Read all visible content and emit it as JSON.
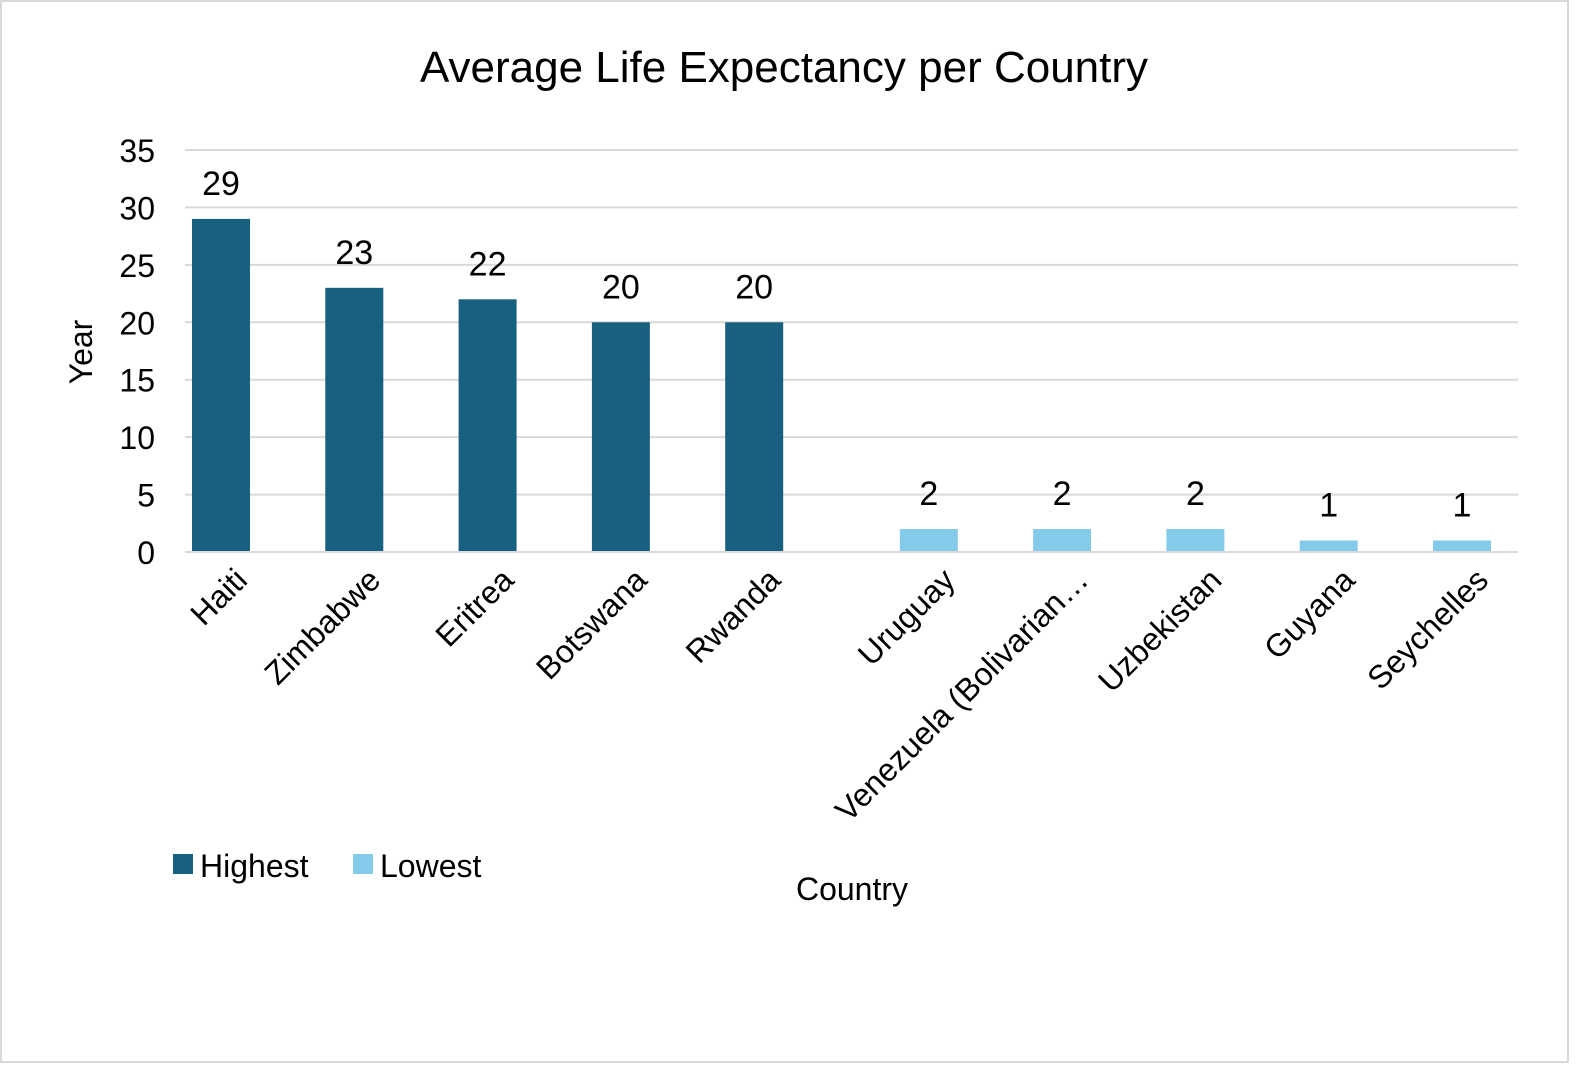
{
  "chart_data": {
    "type": "bar",
    "title": "Average Life Expectancy per Country",
    "xlabel": "Country",
    "ylabel": "Year",
    "ylim": [
      0,
      35
    ],
    "ytick_step": 5,
    "grid": true,
    "legend_position": "bottom-left",
    "categories": [
      "Haiti",
      "Zimbabwe",
      "Eritrea",
      "Botswana",
      "Rwanda",
      "Uruguay",
      "Venezuela (Bolivarian…",
      "Uzbekistan",
      "Guyana",
      "Seychelles"
    ],
    "series": [
      {
        "name": "Highest",
        "color": "#17607f",
        "values": [
          29,
          23,
          22,
          20,
          20,
          null,
          null,
          null,
          null,
          null
        ]
      },
      {
        "name": "Lowest",
        "color": "#84cbea",
        "values": [
          null,
          null,
          null,
          null,
          null,
          2,
          2,
          2,
          1,
          1
        ]
      }
    ]
  }
}
